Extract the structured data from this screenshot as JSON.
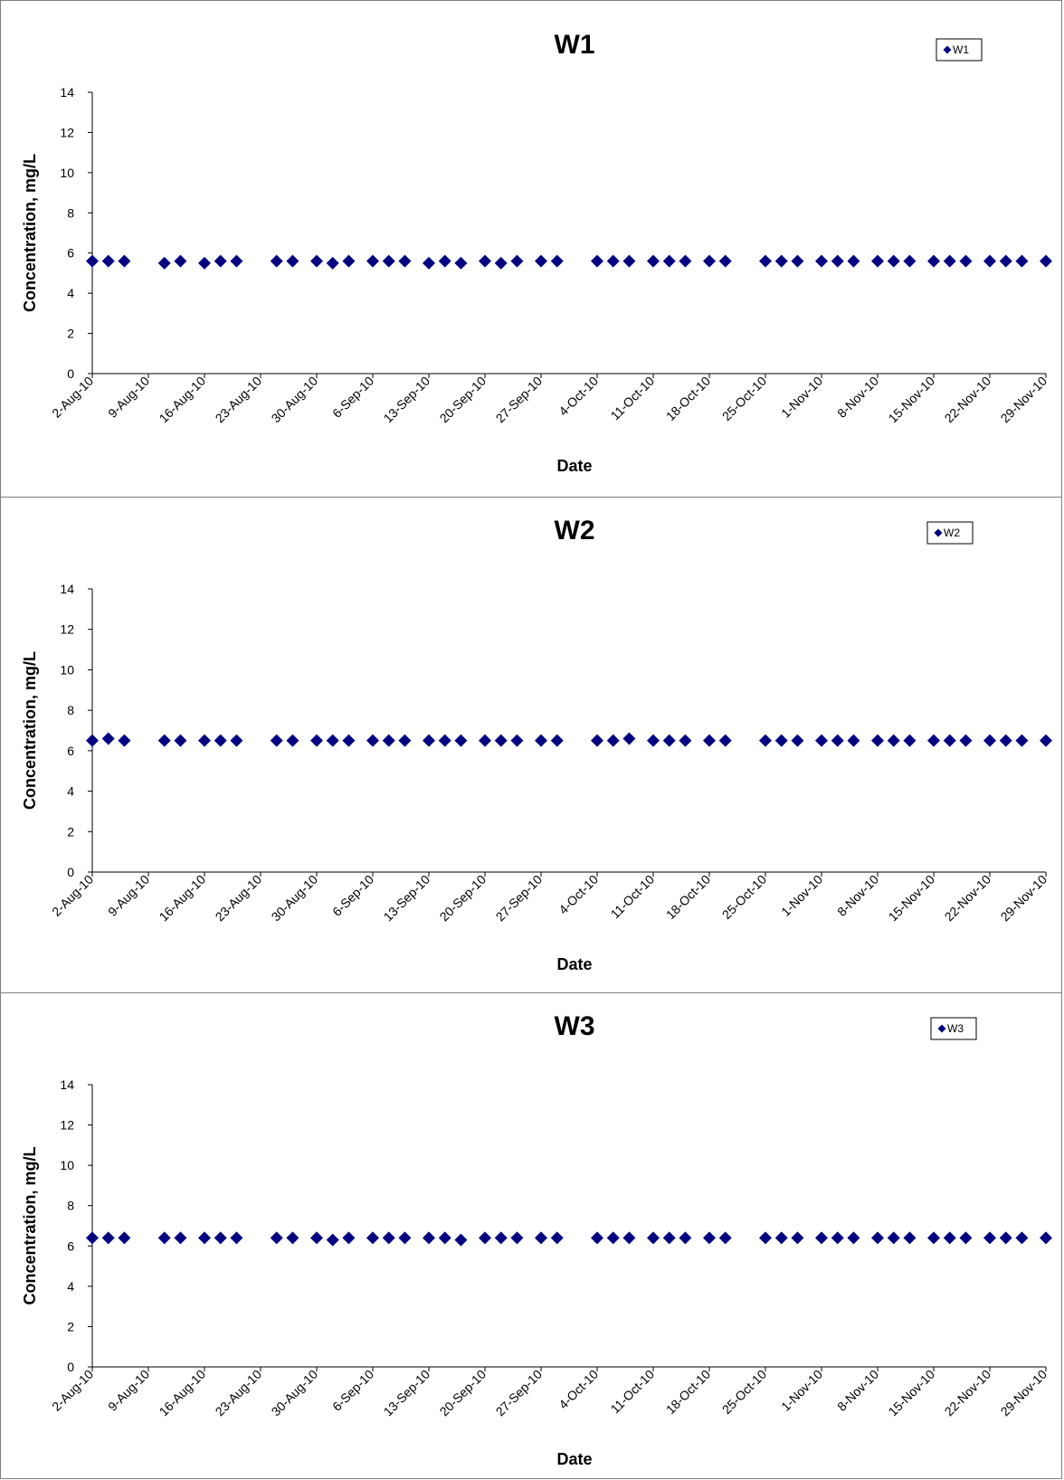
{
  "chart_data": [
    {
      "type": "scatter",
      "title": "W1",
      "xlabel": "Date",
      "ylabel": "Concentration, mg/L",
      "ylim": [
        0,
        14
      ],
      "yticks": [
        "0",
        "2",
        "4",
        "6",
        "8",
        "10",
        "12",
        "14"
      ],
      "xticks": [
        "2-Aug-10",
        "9-Aug-10",
        "16-Aug-10",
        "23-Aug-10",
        "30-Aug-10",
        "6-Sep-10",
        "13-Sep-10",
        "20-Sep-10",
        "27-Sep-10",
        "4-Oct-10",
        "11-Oct-10",
        "18-Oct-10",
        "25-Oct-10",
        "1-Nov-10",
        "8-Nov-10",
        "15-Nov-10",
        "22-Nov-10",
        "29-Nov-10"
      ],
      "legend_position": "top-right",
      "grid": false,
      "marker_color": "#000080",
      "series": [
        {
          "name": "W1",
          "points": [
            {
              "x": "2010-08-02",
              "y": 5.6
            },
            {
              "x": "2010-08-04",
              "y": 5.6
            },
            {
              "x": "2010-08-06",
              "y": 5.6
            },
            {
              "x": "2010-08-11",
              "y": 5.5
            },
            {
              "x": "2010-08-13",
              "y": 5.6
            },
            {
              "x": "2010-08-16",
              "y": 5.5
            },
            {
              "x": "2010-08-18",
              "y": 5.6
            },
            {
              "x": "2010-08-20",
              "y": 5.6
            },
            {
              "x": "2010-08-25",
              "y": 5.6
            },
            {
              "x": "2010-08-27",
              "y": 5.6
            },
            {
              "x": "2010-08-30",
              "y": 5.6
            },
            {
              "x": "2010-09-01",
              "y": 5.5
            },
            {
              "x": "2010-09-03",
              "y": 5.6
            },
            {
              "x": "2010-09-06",
              "y": 5.6
            },
            {
              "x": "2010-09-08",
              "y": 5.6
            },
            {
              "x": "2010-09-10",
              "y": 5.6
            },
            {
              "x": "2010-09-13",
              "y": 5.5
            },
            {
              "x": "2010-09-15",
              "y": 5.6
            },
            {
              "x": "2010-09-17",
              "y": 5.5
            },
            {
              "x": "2010-09-20",
              "y": 5.6
            },
            {
              "x": "2010-09-22",
              "y": 5.5
            },
            {
              "x": "2010-09-24",
              "y": 5.6
            },
            {
              "x": "2010-09-27",
              "y": 5.6
            },
            {
              "x": "2010-09-29",
              "y": 5.6
            },
            {
              "x": "2010-10-04",
              "y": 5.6
            },
            {
              "x": "2010-10-06",
              "y": 5.6
            },
            {
              "x": "2010-10-08",
              "y": 5.6
            },
            {
              "x": "2010-10-11",
              "y": 5.6
            },
            {
              "x": "2010-10-13",
              "y": 5.6
            },
            {
              "x": "2010-10-15",
              "y": 5.6
            },
            {
              "x": "2010-10-18",
              "y": 5.6
            },
            {
              "x": "2010-10-20",
              "y": 5.6
            },
            {
              "x": "2010-10-25",
              "y": 5.6
            },
            {
              "x": "2010-10-27",
              "y": 5.6
            },
            {
              "x": "2010-10-29",
              "y": 5.6
            },
            {
              "x": "2010-11-01",
              "y": 5.6
            },
            {
              "x": "2010-11-03",
              "y": 5.6
            },
            {
              "x": "2010-11-05",
              "y": 5.6
            },
            {
              "x": "2010-11-08",
              "y": 5.6
            },
            {
              "x": "2010-11-10",
              "y": 5.6
            },
            {
              "x": "2010-11-12",
              "y": 5.6
            },
            {
              "x": "2010-11-15",
              "y": 5.6
            },
            {
              "x": "2010-11-17",
              "y": 5.6
            },
            {
              "x": "2010-11-19",
              "y": 5.6
            },
            {
              "x": "2010-11-22",
              "y": 5.6
            },
            {
              "x": "2010-11-24",
              "y": 5.6
            },
            {
              "x": "2010-11-26",
              "y": 5.6
            },
            {
              "x": "2010-11-29",
              "y": 5.6
            }
          ]
        }
      ]
    },
    {
      "type": "scatter",
      "title": "W2",
      "xlabel": "Date",
      "ylabel": "Concentration, mg/L",
      "ylim": [
        0,
        14
      ],
      "yticks": [
        "0",
        "2",
        "4",
        "6",
        "8",
        "10",
        "12",
        "14"
      ],
      "xticks": [
        "2-Aug-10",
        "9-Aug-10",
        "16-Aug-10",
        "23-Aug-10",
        "30-Aug-10",
        "6-Sep-10",
        "13-Sep-10",
        "20-Sep-10",
        "27-Sep-10",
        "4-Oct-10",
        "11-Oct-10",
        "18-Oct-10",
        "25-Oct-10",
        "1-Nov-10",
        "8-Nov-10",
        "15-Nov-10",
        "22-Nov-10",
        "29-Nov-10"
      ],
      "legend_position": "top-right",
      "grid": false,
      "marker_color": "#000080",
      "series": [
        {
          "name": "W2",
          "points": [
            {
              "x": "2010-08-02",
              "y": 6.5
            },
            {
              "x": "2010-08-04",
              "y": 6.6
            },
            {
              "x": "2010-08-06",
              "y": 6.5
            },
            {
              "x": "2010-08-11",
              "y": 6.5
            },
            {
              "x": "2010-08-13",
              "y": 6.5
            },
            {
              "x": "2010-08-16",
              "y": 6.5
            },
            {
              "x": "2010-08-18",
              "y": 6.5
            },
            {
              "x": "2010-08-20",
              "y": 6.5
            },
            {
              "x": "2010-08-25",
              "y": 6.5
            },
            {
              "x": "2010-08-27",
              "y": 6.5
            },
            {
              "x": "2010-08-30",
              "y": 6.5
            },
            {
              "x": "2010-09-01",
              "y": 6.5
            },
            {
              "x": "2010-09-03",
              "y": 6.5
            },
            {
              "x": "2010-09-06",
              "y": 6.5
            },
            {
              "x": "2010-09-08",
              "y": 6.5
            },
            {
              "x": "2010-09-10",
              "y": 6.5
            },
            {
              "x": "2010-09-13",
              "y": 6.5
            },
            {
              "x": "2010-09-15",
              "y": 6.5
            },
            {
              "x": "2010-09-17",
              "y": 6.5
            },
            {
              "x": "2010-09-20",
              "y": 6.5
            },
            {
              "x": "2010-09-22",
              "y": 6.5
            },
            {
              "x": "2010-09-24",
              "y": 6.5
            },
            {
              "x": "2010-09-27",
              "y": 6.5
            },
            {
              "x": "2010-09-29",
              "y": 6.5
            },
            {
              "x": "2010-10-04",
              "y": 6.5
            },
            {
              "x": "2010-10-06",
              "y": 6.5
            },
            {
              "x": "2010-10-08",
              "y": 6.6
            },
            {
              "x": "2010-10-11",
              "y": 6.5
            },
            {
              "x": "2010-10-13",
              "y": 6.5
            },
            {
              "x": "2010-10-15",
              "y": 6.5
            },
            {
              "x": "2010-10-18",
              "y": 6.5
            },
            {
              "x": "2010-10-20",
              "y": 6.5
            },
            {
              "x": "2010-10-25",
              "y": 6.5
            },
            {
              "x": "2010-10-27",
              "y": 6.5
            },
            {
              "x": "2010-10-29",
              "y": 6.5
            },
            {
              "x": "2010-11-01",
              "y": 6.5
            },
            {
              "x": "2010-11-03",
              "y": 6.5
            },
            {
              "x": "2010-11-05",
              "y": 6.5
            },
            {
              "x": "2010-11-08",
              "y": 6.5
            },
            {
              "x": "2010-11-10",
              "y": 6.5
            },
            {
              "x": "2010-11-12",
              "y": 6.5
            },
            {
              "x": "2010-11-15",
              "y": 6.5
            },
            {
              "x": "2010-11-17",
              "y": 6.5
            },
            {
              "x": "2010-11-19",
              "y": 6.5
            },
            {
              "x": "2010-11-22",
              "y": 6.5
            },
            {
              "x": "2010-11-24",
              "y": 6.5
            },
            {
              "x": "2010-11-26",
              "y": 6.5
            },
            {
              "x": "2010-11-29",
              "y": 6.5
            }
          ]
        }
      ]
    },
    {
      "type": "scatter",
      "title": "W3",
      "xlabel": "Date",
      "ylabel": "Concentration, mg/L",
      "ylim": [
        0,
        14
      ],
      "yticks": [
        "0",
        "2",
        "4",
        "6",
        "8",
        "10",
        "12",
        "14"
      ],
      "xticks": [
        "2-Aug-10",
        "9-Aug-10",
        "16-Aug-10",
        "23-Aug-10",
        "30-Aug-10",
        "6-Sep-10",
        "13-Sep-10",
        "20-Sep-10",
        "27-Sep-10",
        "4-Oct-10",
        "11-Oct-10",
        "18-Oct-10",
        "25-Oct-10",
        "1-Nov-10",
        "8-Nov-10",
        "15-Nov-10",
        "22-Nov-10",
        "29-Nov-10"
      ],
      "legend_position": "top-right",
      "grid": false,
      "marker_color": "#000080",
      "series": [
        {
          "name": "W3",
          "points": [
            {
              "x": "2010-08-02",
              "y": 6.4
            },
            {
              "x": "2010-08-04",
              "y": 6.4
            },
            {
              "x": "2010-08-06",
              "y": 6.4
            },
            {
              "x": "2010-08-11",
              "y": 6.4
            },
            {
              "x": "2010-08-13",
              "y": 6.4
            },
            {
              "x": "2010-08-16",
              "y": 6.4
            },
            {
              "x": "2010-08-18",
              "y": 6.4
            },
            {
              "x": "2010-08-20",
              "y": 6.4
            },
            {
              "x": "2010-08-25",
              "y": 6.4
            },
            {
              "x": "2010-08-27",
              "y": 6.4
            },
            {
              "x": "2010-08-30",
              "y": 6.4
            },
            {
              "x": "2010-09-01",
              "y": 6.3
            },
            {
              "x": "2010-09-03",
              "y": 6.4
            },
            {
              "x": "2010-09-06",
              "y": 6.4
            },
            {
              "x": "2010-09-08",
              "y": 6.4
            },
            {
              "x": "2010-09-10",
              "y": 6.4
            },
            {
              "x": "2010-09-13",
              "y": 6.4
            },
            {
              "x": "2010-09-15",
              "y": 6.4
            },
            {
              "x": "2010-09-17",
              "y": 6.3
            },
            {
              "x": "2010-09-20",
              "y": 6.4
            },
            {
              "x": "2010-09-22",
              "y": 6.4
            },
            {
              "x": "2010-09-24",
              "y": 6.4
            },
            {
              "x": "2010-09-27",
              "y": 6.4
            },
            {
              "x": "2010-09-29",
              "y": 6.4
            },
            {
              "x": "2010-10-04",
              "y": 6.4
            },
            {
              "x": "2010-10-06",
              "y": 6.4
            },
            {
              "x": "2010-10-08",
              "y": 6.4
            },
            {
              "x": "2010-10-11",
              "y": 6.4
            },
            {
              "x": "2010-10-13",
              "y": 6.4
            },
            {
              "x": "2010-10-15",
              "y": 6.4
            },
            {
              "x": "2010-10-18",
              "y": 6.4
            },
            {
              "x": "2010-10-20",
              "y": 6.4
            },
            {
              "x": "2010-10-25",
              "y": 6.4
            },
            {
              "x": "2010-10-27",
              "y": 6.4
            },
            {
              "x": "2010-10-29",
              "y": 6.4
            },
            {
              "x": "2010-11-01",
              "y": 6.4
            },
            {
              "x": "2010-11-03",
              "y": 6.4
            },
            {
              "x": "2010-11-05",
              "y": 6.4
            },
            {
              "x": "2010-11-08",
              "y": 6.4
            },
            {
              "x": "2010-11-10",
              "y": 6.4
            },
            {
              "x": "2010-11-12",
              "y": 6.4
            },
            {
              "x": "2010-11-15",
              "y": 6.4
            },
            {
              "x": "2010-11-17",
              "y": 6.4
            },
            {
              "x": "2010-11-19",
              "y": 6.4
            },
            {
              "x": "2010-11-22",
              "y": 6.4
            },
            {
              "x": "2010-11-24",
              "y": 6.4
            },
            {
              "x": "2010-11-26",
              "y": 6.4
            },
            {
              "x": "2010-11-29",
              "y": 6.4
            }
          ]
        }
      ]
    }
  ]
}
